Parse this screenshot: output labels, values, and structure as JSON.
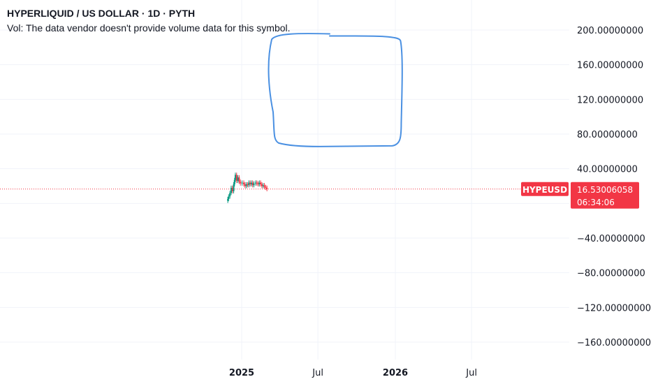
{
  "header": {
    "title": "HYPERLIQUID / US DOLLAR · 1D · PYTH",
    "volume_note": "Vol: The data vendor doesn't provide volume data for this symbol."
  },
  "price_tag": {
    "symbol": "HYPEUSD",
    "price": "16.53006058",
    "countdown": "06:34:06",
    "color": "#f23645"
  },
  "chart_data": {
    "type": "candlestick",
    "title": "HYPERLIQUID / US DOLLAR · 1D · PYTH",
    "ylim": [
      -180,
      210
    ],
    "y_ticks": [
      {
        "value": 200,
        "label": "200.00000000"
      },
      {
        "value": 160,
        "label": "160.00000000"
      },
      {
        "value": 120,
        "label": "120.00000000"
      },
      {
        "value": 80,
        "label": "80.00000000"
      },
      {
        "value": 40,
        "label": "40.00000000"
      },
      {
        "value": -40,
        "label": "−40.00000000"
      },
      {
        "value": -80,
        "label": "−80.00000000"
      },
      {
        "value": -120,
        "label": "−120.00000000"
      },
      {
        "value": -160,
        "label": "−160.00000000"
      }
    ],
    "x_domain": [
      "2024-11-01",
      "2026-10-31"
    ],
    "x_ticks": [
      {
        "date": "2025-01-01",
        "label": "2025",
        "bold": true
      },
      {
        "date": "2025-07-01",
        "label": "Jul",
        "bold": false
      },
      {
        "date": "2026-01-01",
        "label": "2026",
        "bold": true
      },
      {
        "date": "2026-07-01",
        "label": "Jul",
        "bold": false
      }
    ],
    "last_price": 16.53006058,
    "up_color": "#089981",
    "down_color": "#f23645",
    "grid": true,
    "series": [
      {
        "date": "2024-11-29",
        "close": 5
      },
      {
        "date": "2024-12-01",
        "close": 8
      },
      {
        "date": "2024-12-04",
        "close": 12
      },
      {
        "date": "2024-12-07",
        "close": 18
      },
      {
        "date": "2024-12-10",
        "close": 14
      },
      {
        "date": "2024-12-13",
        "close": 22
      },
      {
        "date": "2024-12-15",
        "close": 27
      },
      {
        "date": "2024-12-17",
        "close": 33
      },
      {
        "date": "2024-12-20",
        "close": 26
      },
      {
        "date": "2024-12-23",
        "close": 30
      },
      {
        "date": "2024-12-26",
        "close": 25
      },
      {
        "date": "2024-12-29",
        "close": 23
      },
      {
        "date": "2025-01-02",
        "close": 24
      },
      {
        "date": "2025-01-06",
        "close": 22
      },
      {
        "date": "2025-01-09",
        "close": 20
      },
      {
        "date": "2025-01-12",
        "close": 22
      },
      {
        "date": "2025-01-15",
        "close": 21
      },
      {
        "date": "2025-01-18",
        "close": 24
      },
      {
        "date": "2025-01-21",
        "close": 22
      },
      {
        "date": "2025-01-24",
        "close": 24
      },
      {
        "date": "2025-01-27",
        "close": 21
      },
      {
        "date": "2025-01-30",
        "close": 23
      },
      {
        "date": "2025-02-03",
        "close": 24
      },
      {
        "date": "2025-02-06",
        "close": 23
      },
      {
        "date": "2025-02-09",
        "close": 22
      },
      {
        "date": "2025-02-12",
        "close": 24
      },
      {
        "date": "2025-02-15",
        "close": 22
      },
      {
        "date": "2025-02-18",
        "close": 20
      },
      {
        "date": "2025-02-21",
        "close": 21
      },
      {
        "date": "2025-02-24",
        "close": 19
      },
      {
        "date": "2025-02-27",
        "close": 18
      },
      {
        "date": "2025-03-02",
        "close": 16.5
      }
    ],
    "annotation": {
      "type": "hand-drawn rectangle",
      "color": "#4a90e2",
      "x_range": [
        "2025-03-10",
        "2026-01-10"
      ],
      "y_range": [
        68,
        194
      ]
    }
  }
}
